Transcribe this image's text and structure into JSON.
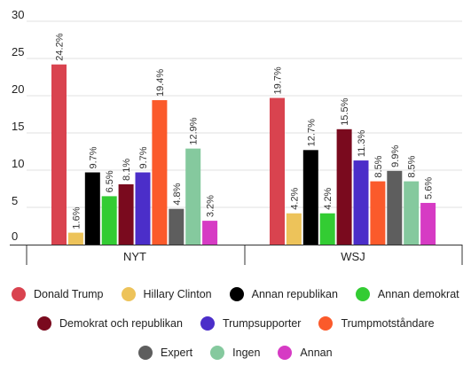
{
  "chart_data": {
    "type": "bar",
    "title": "",
    "xlabel": "",
    "ylabel": "",
    "ylim": [
      0,
      30
    ],
    "yticks": [
      0,
      5,
      10,
      15,
      20,
      25,
      30
    ],
    "grid": true,
    "legend_position": "bottom",
    "categories": [
      "NYT",
      "WSJ"
    ],
    "series": [
      {
        "name": "Donald Trump",
        "color": "#d9434f",
        "values": [
          24.2,
          19.7
        ],
        "labels": [
          "24.2%",
          "19.7%"
        ]
      },
      {
        "name": "Hillary Clinton",
        "color": "#edc35a",
        "values": [
          1.6,
          4.2
        ],
        "labels": [
          "1.6%",
          "4.2%"
        ]
      },
      {
        "name": "Annan republikan",
        "color": "#000000",
        "values": [
          9.7,
          12.7
        ],
        "labels": [
          "9.7%",
          "12.7%"
        ]
      },
      {
        "name": "Annan demokrat",
        "color": "#33cc33",
        "values": [
          6.5,
          4.2
        ],
        "labels": [
          "6.5%",
          "4.2%"
        ]
      },
      {
        "name": "Demokrat och republikan",
        "color": "#7a0a1e",
        "values": [
          8.1,
          15.5
        ],
        "labels": [
          "8.1%",
          "15.5%"
        ]
      },
      {
        "name": "Trumpsupporter",
        "color": "#4b2ec9",
        "values": [
          9.7,
          11.3
        ],
        "labels": [
          "9.7%",
          "11.3%"
        ]
      },
      {
        "name": "Trumpmotståndare",
        "color": "#fb5a2b",
        "values": [
          19.4,
          8.5
        ],
        "labels": [
          "19.4%",
          "8.5%"
        ]
      },
      {
        "name": "Expert",
        "color": "#5e5e5e",
        "values": [
          4.8,
          9.9
        ],
        "labels": [
          "4.8%",
          "9.9%"
        ]
      },
      {
        "name": "Ingen",
        "color": "#85c99e",
        "values": [
          12.9,
          8.5
        ],
        "labels": [
          "12.9%",
          "8.5%"
        ]
      },
      {
        "name": "Annan",
        "color": "#d63bc4",
        "values": [
          3.2,
          5.6
        ],
        "labels": [
          "3.2%",
          "5.6%"
        ]
      }
    ],
    "legend_rows": [
      [
        0,
        1,
        2,
        3
      ],
      [
        4,
        5,
        6
      ],
      [
        7,
        8,
        9
      ]
    ]
  }
}
